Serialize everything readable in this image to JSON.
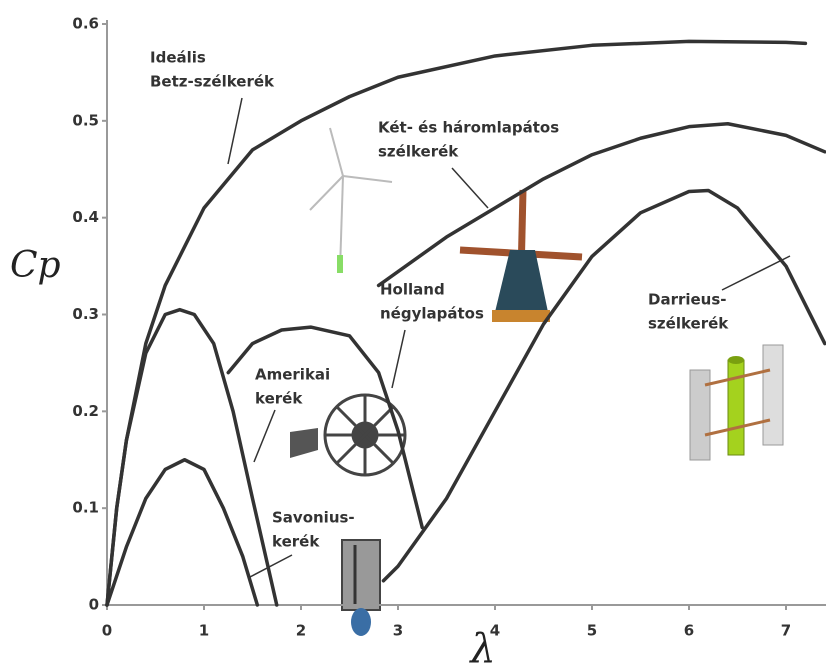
{
  "chart_data": {
    "type": "line",
    "y_label": "Cp",
    "x_label": "λ",
    "xlim": [
      0,
      7.4
    ],
    "ylim": [
      0,
      0.6
    ],
    "xticks": [
      0,
      1,
      2,
      3,
      4,
      5,
      6,
      7
    ],
    "yticks": [
      0,
      0.1,
      0.2,
      0.3,
      0.4,
      0.5,
      0.6
    ],
    "grid": false,
    "series": [
      {
        "color": "#333333",
        "x": [
          0,
          0.1,
          0.2,
          0.4,
          0.6,
          0.8,
          1,
          1.5,
          2,
          2.5,
          3,
          4,
          5,
          6,
          7,
          7.2
        ],
        "values": [
          0,
          0.1,
          0.17,
          0.27,
          0.33,
          0.37,
          0.41,
          0.47,
          0.5,
          0.525,
          0.545,
          0.567,
          0.578,
          0.582,
          0.581,
          0.58
        ]
      },
      {
        "color": "#333333",
        "x": [
          2.8,
          3.5,
          4,
          4.5,
          5,
          5.5,
          6,
          6.4,
          7,
          7.4
        ],
        "values": [
          0.33,
          0.38,
          0.41,
          0.44,
          0.465,
          0.482,
          0.494,
          0.497,
          0.485,
          0.468
        ]
      },
      {
        "color": "#333333",
        "x": [
          1.25,
          1.5,
          1.8,
          2.1,
          2.5,
          2.8,
          3,
          3.15,
          3.25
        ],
        "values": [
          0.24,
          0.27,
          0.284,
          0.287,
          0.278,
          0.24,
          0.18,
          0.12,
          0.08
        ]
      },
      {
        "color": "#333333",
        "x": [
          0,
          0.1,
          0.2,
          0.4,
          0.6,
          0.75,
          0.9,
          1.1,
          1.3,
          1.5,
          1.75
        ],
        "values": [
          0,
          0.1,
          0.17,
          0.26,
          0.3,
          0.305,
          0.3,
          0.27,
          0.2,
          0.11,
          0
        ]
      },
      {
        "color": "#333333",
        "x": [
          0,
          0.2,
          0.4,
          0.6,
          0.8,
          1,
          1.2,
          1.4,
          1.55
        ],
        "values": [
          0,
          0.06,
          0.11,
          0.14,
          0.15,
          0.14,
          0.1,
          0.05,
          0
        ]
      },
      {
        "color": "#333333",
        "x": [
          2.85,
          3,
          3.5,
          4,
          4.5,
          5,
          5.5,
          6,
          6.2,
          6.5,
          7,
          7.4
        ],
        "values": [
          0.025,
          0.04,
          0.11,
          0.2,
          0.29,
          0.36,
          0.405,
          0.427,
          0.428,
          0.41,
          0.35,
          0.27
        ]
      }
    ],
    "annotations": [
      {
        "text": [
          "Ideális",
          "Betz-szélkerék"
        ]
      },
      {
        "text": [
          "Két- és háromlapátos",
          "szélkerék"
        ]
      },
      {
        "text": [
          "Holland",
          "négylapátos"
        ]
      },
      {
        "text": [
          "Amerikai",
          "kerék"
        ]
      },
      {
        "text": [
          "Savonius-",
          "kerék"
        ]
      },
      {
        "text": [
          "Darrieus-",
          "szélkerék"
        ]
      }
    ]
  }
}
